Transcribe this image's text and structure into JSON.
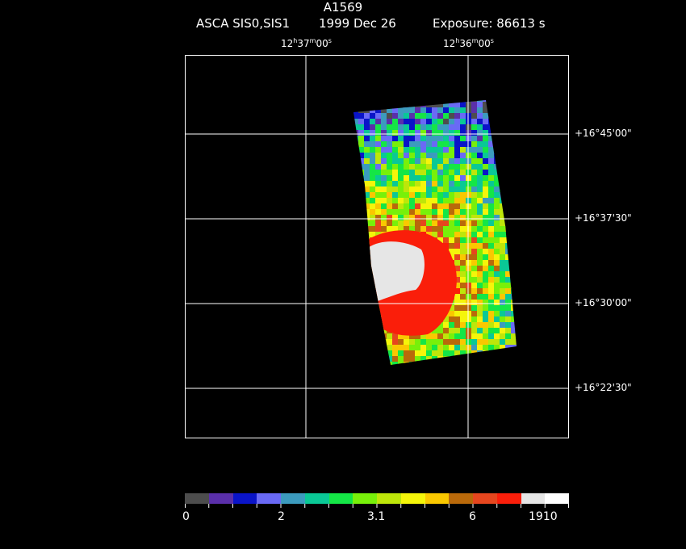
{
  "header": {
    "title": "A1569",
    "instrument": "ASCA SIS0,SIS1",
    "date": "1999 Dec 26",
    "exposure": "Exposure: 86613 s"
  },
  "axes": {
    "ra_labels": [
      {
        "h": "12",
        "m": "37",
        "s": "00"
      },
      {
        "h": "12",
        "m": "36",
        "s": "00"
      }
    ],
    "dec_labels": [
      "+16°45'00\"",
      "+16°37'30\"",
      "+16°30'00\"",
      "+16°22'30\""
    ]
  },
  "colorbar": {
    "colors": [
      "#4d4d4d",
      "#5a2faa",
      "#0a14c8",
      "#6a6af5",
      "#3c9bbe",
      "#0ac896",
      "#14e646",
      "#78f00a",
      "#bee60a",
      "#f5f50a",
      "#fac800",
      "#b9690a",
      "#e6461e",
      "#fa1e0a",
      "#e6e6e6",
      "#ffffff"
    ],
    "labels": [
      "0",
      "2",
      "3.1",
      "6",
      "1910"
    ]
  }
}
